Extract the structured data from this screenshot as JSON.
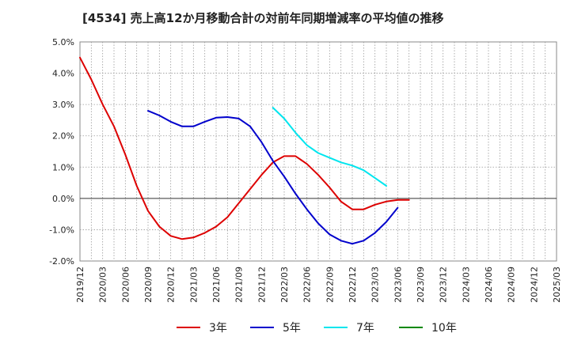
{
  "chart_data": {
    "type": "line",
    "title": "[4534]  売上高12か月移動合計の対前年同期増減率の平均値の推移",
    "y_ticks": [
      "5.0%",
      "4.0%",
      "3.0%",
      "2.0%",
      "1.0%",
      "0.0%",
      "-1.0%",
      "-2.0%"
    ],
    "ylim": [
      -2.0,
      5.0
    ],
    "x_ticks": [
      "2019/12",
      "2020/03",
      "2020/06",
      "2020/09",
      "2020/12",
      "2021/03",
      "2021/06",
      "2021/09",
      "2021/12",
      "2022/03",
      "2022/06",
      "2022/09",
      "2022/12",
      "2023/03",
      "2023/06",
      "2023/09",
      "2023/12",
      "2024/03",
      "2024/06",
      "2024/09",
      "2024/12",
      "2025/03"
    ],
    "grid": true,
    "legend_position": "bottom",
    "series": [
      {
        "name": "3年",
        "color": "#dd0000",
        "values": [
          4.5,
          3.8,
          3.0,
          2.3,
          1.4,
          0.4,
          -0.4,
          -0.9,
          -1.2,
          -1.3,
          -1.25,
          -1.1,
          -0.9,
          -0.6,
          -0.15,
          0.3,
          0.75,
          1.15,
          1.35,
          1.35,
          1.1,
          0.75,
          0.35,
          -0.1,
          -0.35,
          -0.35,
          -0.2,
          -0.1,
          -0.05,
          -0.05
        ]
      },
      {
        "name": "5年",
        "color": "#0000cc",
        "values": [
          null,
          null,
          null,
          null,
          null,
          null,
          2.8,
          2.65,
          2.45,
          2.3,
          2.3,
          2.45,
          2.58,
          2.6,
          2.55,
          2.3,
          1.8,
          1.2,
          0.7,
          0.15,
          -0.35,
          -0.8,
          -1.15,
          -1.35,
          -1.45,
          -1.35,
          -1.1,
          -0.75,
          -0.3
        ]
      },
      {
        "name": "7年",
        "color": "#00e5ee",
        "values": [
          null,
          null,
          null,
          null,
          null,
          null,
          null,
          null,
          null,
          null,
          null,
          null,
          null,
          null,
          null,
          null,
          null,
          2.9,
          2.55,
          2.1,
          1.7,
          1.45,
          1.3,
          1.15,
          1.05,
          0.9,
          0.65,
          0.4
        ]
      },
      {
        "name": "10年",
        "color": "#008800",
        "values": []
      }
    ]
  }
}
